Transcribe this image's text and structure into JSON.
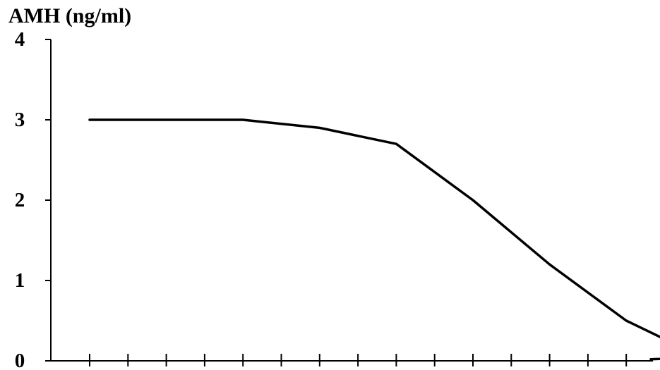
{
  "chart_data": {
    "type": "line",
    "title": "",
    "ylabel": "AMH (ng/ml)",
    "xlabel": "",
    "ylim": [
      0,
      4
    ],
    "yticks": [
      "0",
      "1",
      "2",
      "3",
      "4"
    ],
    "x_tick_count": 15,
    "grid": false,
    "series": [
      {
        "values": [
          3.0,
          3.0,
          3.0,
          2.9,
          2.7,
          2.0,
          1.2,
          0.5,
          0.04,
          0.02
        ],
        "color": "#000000"
      }
    ]
  }
}
